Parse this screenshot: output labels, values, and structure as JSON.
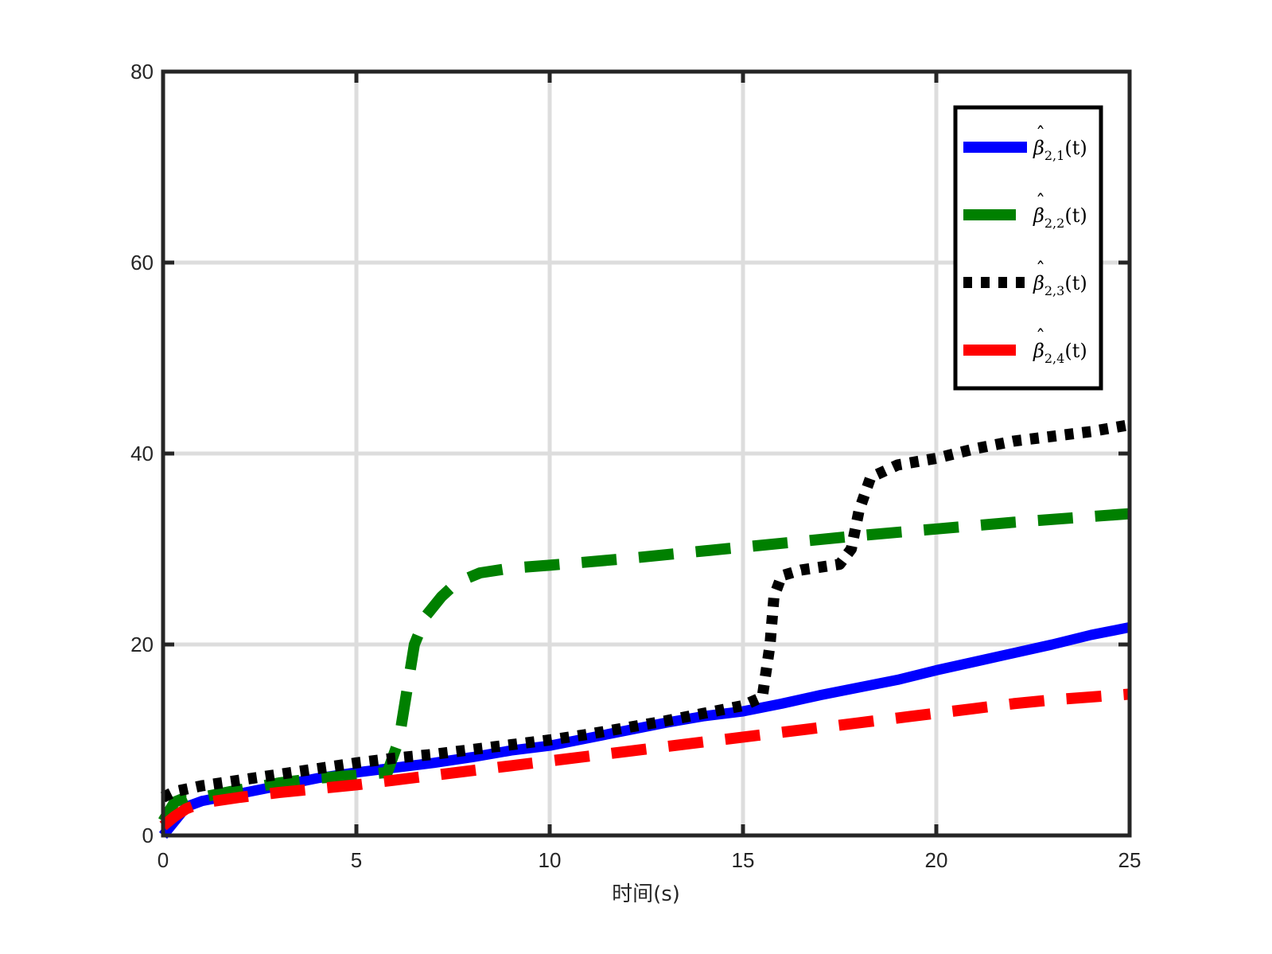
{
  "chart_data": {
    "type": "line",
    "title": "",
    "xlabel": "时间(s)",
    "ylabel": "",
    "xlim": [
      0,
      25
    ],
    "ylim": [
      0,
      80
    ],
    "xticks": [
      0,
      5,
      10,
      15,
      20,
      25
    ],
    "yticks": [
      0,
      20,
      40,
      60,
      80
    ],
    "grid": true,
    "legend_position": "top-right",
    "series": [
      {
        "name": "β̂2,1(t)",
        "label": {
          "base": "β",
          "sub": "2,1",
          "arg": "(t)"
        },
        "color": "#0000ff",
        "style": "solid",
        "x": [
          0,
          0.3,
          0.6,
          1,
          2,
          3,
          4,
          5,
          6,
          7,
          8,
          9,
          10,
          11,
          12,
          13,
          14,
          15,
          16,
          17,
          18,
          19,
          20,
          21,
          22,
          23,
          24,
          25
        ],
        "y": [
          0,
          1.5,
          3,
          3.6,
          4.4,
          5.2,
          6,
          6.6,
          7.1,
          7.6,
          8.2,
          8.9,
          9.4,
          10.2,
          11,
          11.8,
          12.5,
          13,
          13.8,
          14.7,
          15.5,
          16.3,
          17.3,
          18.2,
          19.1,
          20,
          21,
          21.8
        ]
      },
      {
        "name": "β̂2,2(t)",
        "label": {
          "base": "β",
          "sub": "2,2",
          "arg": "(t)"
        },
        "color": "#008000",
        "style": "dashed",
        "x": [
          0,
          0.3,
          0.6,
          1,
          2,
          3,
          4,
          5,
          5.8,
          6.1,
          6.3,
          6.5,
          6.8,
          7.2,
          7.6,
          8.2,
          9,
          10,
          12,
          14,
          16,
          18,
          20,
          22,
          24,
          25
        ],
        "y": [
          1.5,
          3.5,
          4,
          4,
          4.8,
          5.5,
          6,
          6.3,
          6.6,
          10,
          15,
          20,
          23,
          25,
          26.5,
          27.5,
          28,
          28.3,
          29,
          29.8,
          30.6,
          31.4,
          32.1,
          32.8,
          33.4,
          33.7
        ]
      },
      {
        "name": "β̂2,3(t)",
        "label": {
          "base": "β",
          "sub": "2,3",
          "arg": "(t)"
        },
        "color": "#000000",
        "style": "dotted",
        "x": [
          0,
          0.3,
          1,
          2,
          3,
          4,
          5,
          6,
          7,
          8,
          9,
          10,
          11,
          12,
          13,
          14,
          15,
          15.5,
          15.7,
          15.8,
          16,
          16.5,
          17,
          17.5,
          17.8,
          18,
          18.3,
          19,
          20,
          21,
          22,
          23,
          24,
          25
        ],
        "y": [
          4,
          4.6,
          5.2,
          5.8,
          6.4,
          7,
          7.6,
          8.1,
          8.5,
          9,
          9.5,
          10,
          10.6,
          11.3,
          12,
          12.8,
          13.6,
          14.5,
          20,
          25,
          27.2,
          27.8,
          28.1,
          28.4,
          30,
          34,
          37.5,
          38.8,
          39.5,
          40.5,
          41.3,
          41.8,
          42.3,
          43
        ]
      },
      {
        "name": "β̂2,4(t)",
        "label": {
          "base": "β",
          "sub": "2,4",
          "arg": "(t)"
        },
        "color": "#ff0000",
        "style": "dashed",
        "x": [
          0,
          0.3,
          0.6,
          1,
          2,
          3,
          4,
          5,
          6,
          7,
          8,
          9,
          10,
          11,
          12,
          13,
          14,
          15,
          16,
          17,
          18,
          19,
          20,
          21,
          22,
          23,
          24,
          25
        ],
        "y": [
          1,
          2,
          2.8,
          3.4,
          4,
          4.5,
          4.9,
          5.3,
          5.8,
          6.3,
          6.8,
          7.3,
          7.8,
          8.3,
          8.8,
          9.3,
          9.8,
          10.3,
          10.8,
          11.3,
          11.8,
          12.3,
          12.8,
          13.3,
          13.8,
          14.2,
          14.5,
          14.8
        ]
      }
    ]
  }
}
